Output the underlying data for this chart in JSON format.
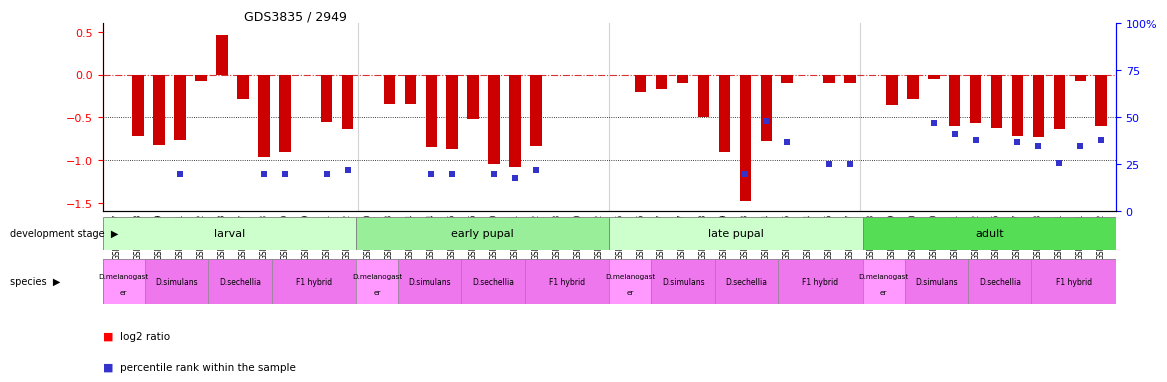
{
  "title": "GDS3835 / 2949",
  "samples": [
    "GSM435987",
    "GSM436078",
    "GSM436079",
    "GSM436091",
    "GSM436092",
    "GSM436093",
    "GSM436827",
    "GSM436828",
    "GSM436829",
    "GSM436839",
    "GSM436841",
    "GSM436842",
    "GSM436080",
    "GSM436083",
    "GSM436084",
    "GSM436094",
    "GSM436095",
    "GSM436096",
    "GSM436830",
    "GSM436831",
    "GSM436832",
    "GSM436848",
    "GSM436850",
    "GSM436852",
    "GSM436085",
    "GSM436086",
    "GSM436087",
    "GSM436097",
    "GSM436098",
    "GSM436099",
    "GSM436833",
    "GSM436834",
    "GSM436835",
    "GSM436854",
    "GSM436856",
    "GSM436857",
    "GSM436088",
    "GSM436089",
    "GSM436090",
    "GSM436100",
    "GSM436101",
    "GSM436102",
    "GSM436836",
    "GSM436837",
    "GSM436838",
    "GSM437041",
    "GSM437091",
    "GSM437092"
  ],
  "log2_ratio": [
    0.0,
    -0.72,
    -0.82,
    -0.76,
    -0.08,
    0.46,
    -0.28,
    -0.96,
    -0.9,
    0.0,
    -0.55,
    -0.63,
    0.0,
    -0.34,
    -0.34,
    -0.85,
    -0.87,
    -0.52,
    -1.05,
    -1.08,
    -0.83,
    0.0,
    0.0,
    0.0,
    0.0,
    -0.2,
    -0.17,
    -0.1,
    -0.5,
    -0.9,
    -1.48,
    -0.78,
    -0.1,
    0.0,
    -0.1,
    -0.1,
    0.0,
    -0.35,
    -0.28,
    -0.05,
    -0.6,
    -0.57,
    -0.62,
    -0.72,
    -0.73,
    -0.63,
    -0.07,
    -0.6
  ],
  "percentile": [
    null,
    null,
    null,
    20,
    null,
    null,
    null,
    20,
    20,
    null,
    20,
    22,
    null,
    null,
    null,
    20,
    20,
    null,
    20,
    18,
    22,
    null,
    null,
    null,
    null,
    null,
    null,
    null,
    null,
    null,
    20,
    48,
    37,
    null,
    25,
    25,
    null,
    null,
    null,
    47,
    41,
    38,
    null,
    37,
    35,
    26,
    35,
    38
  ],
  "ylim_left": [
    -1.6,
    0.6
  ],
  "ylim_right": [
    0,
    100
  ],
  "bar_color": "#cc0000",
  "dot_color": "#3333cc",
  "zero_line_color": "#cc0000",
  "stage_colors": [
    "#ccffcc",
    "#99ee99",
    "#ccffcc",
    "#55dd55"
  ],
  "stage_labels": [
    "larval",
    "early pupal",
    "late pupal",
    "adult"
  ],
  "stage_starts": [
    0,
    12,
    24,
    36
  ],
  "stage_ends": [
    12,
    24,
    36,
    48
  ],
  "species_pattern": [
    {
      "label": "D.melanogast\ner",
      "count": 2,
      "color": "#ff99ff"
    },
    {
      "label": "D.simulans",
      "count": 3,
      "color": "#ee77ee"
    },
    {
      "label": "D.sechellia",
      "count": 3,
      "color": "#ee77ee"
    },
    {
      "label": "F1 hybrid",
      "count": 4,
      "color": "#ee77ee"
    }
  ],
  "n_stages": 4,
  "total_samples": 48
}
